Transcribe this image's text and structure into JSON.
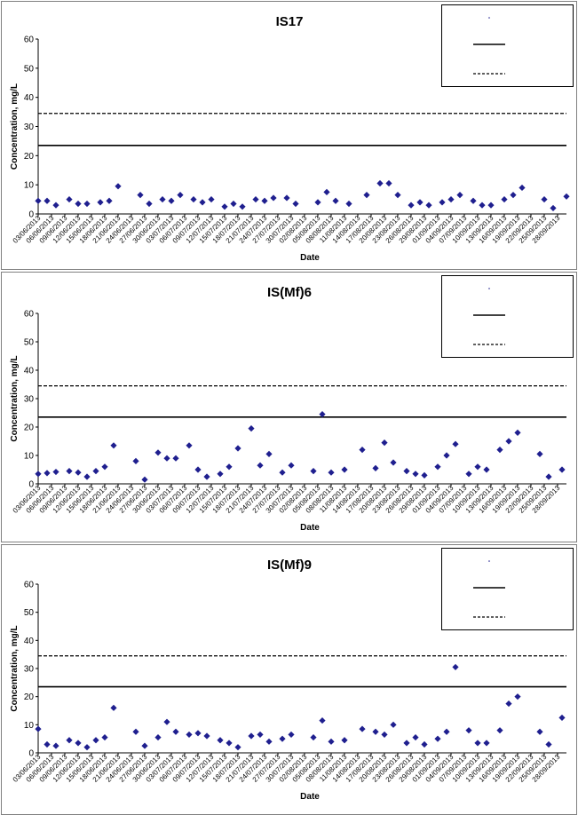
{
  "chart_data": [
    {
      "type": "scatter",
      "title": "IS17",
      "xlabel": "Date",
      "ylabel": "Concentration, mg/L",
      "ylim": [
        0,
        60
      ],
      "yticks": [
        "0",
        "10",
        "20",
        "30",
        "40",
        "50",
        "60"
      ],
      "xlim": [
        "03/06/2013",
        "30/09/2013"
      ],
      "xticks": [
        "03/06/2013",
        "06/06/2013",
        "09/06/2013",
        "12/06/2013",
        "15/06/2013",
        "18/06/2013",
        "21/06/2013",
        "24/06/2013",
        "27/06/2013",
        "30/06/2013",
        "03/07/2013",
        "06/07/2013",
        "09/07/2013",
        "12/07/2013",
        "15/07/2013",
        "18/07/2013",
        "21/07/2013",
        "24/07/2013",
        "27/07/2013",
        "30/07/2013",
        "02/08/2013",
        "05/08/2013",
        "08/08/2013",
        "11/08/2013",
        "14/08/2013",
        "17/08/2013",
        "20/08/2013",
        "23/08/2013",
        "26/08/2013",
        "29/08/2013",
        "01/09/2013",
        "04/09/2013",
        "07/09/2013",
        "10/09/2013",
        "13/09/2013",
        "16/09/2013",
        "19/09/2013",
        "22/09/2013",
        "25/09/2013",
        "28/09/2013"
      ],
      "grid": false,
      "legend": "top-right",
      "series": [
        {
          "marker": "diamond",
          "color": "#1f1f8f",
          "points": [
            [
              "03/06/2013",
              4.5
            ],
            [
              "05/06/2013",
              4.5
            ],
            [
              "07/06/2013",
              3
            ],
            [
              "10/06/2013",
              5
            ],
            [
              "12/06/2013",
              3.5
            ],
            [
              "14/06/2013",
              3.5
            ],
            [
              "17/06/2013",
              4
            ],
            [
              "19/06/2013",
              4.5
            ],
            [
              "21/06/2013",
              9.5
            ],
            [
              "26/06/2013",
              6.5
            ],
            [
              "28/06/2013",
              3.5
            ],
            [
              "01/07/2013",
              5
            ],
            [
              "03/07/2013",
              4.5
            ],
            [
              "05/07/2013",
              6.5
            ],
            [
              "08/07/2013",
              5
            ],
            [
              "10/07/2013",
              4
            ],
            [
              "12/07/2013",
              5
            ],
            [
              "15/07/2013",
              2.5
            ],
            [
              "17/07/2013",
              3.5
            ],
            [
              "19/07/2013",
              2.5
            ],
            [
              "22/07/2013",
              5
            ],
            [
              "24/07/2013",
              4.5
            ],
            [
              "26/07/2013",
              5.5
            ],
            [
              "29/07/2013",
              5.5
            ],
            [
              "31/07/2013",
              3.5
            ],
            [
              "05/08/2013",
              4
            ],
            [
              "07/08/2013",
              7.5
            ],
            [
              "09/08/2013",
              4.5
            ],
            [
              "12/08/2013",
              3.5
            ],
            [
              "16/08/2013",
              6.5
            ],
            [
              "19/08/2013",
              10.5
            ],
            [
              "21/08/2013",
              10.5
            ],
            [
              "23/08/2013",
              6.5
            ],
            [
              "26/08/2013",
              3
            ],
            [
              "28/08/2013",
              4
            ],
            [
              "30/08/2013",
              3
            ],
            [
              "02/09/2013",
              4
            ],
            [
              "04/09/2013",
              5
            ],
            [
              "06/09/2013",
              6.5
            ],
            [
              "09/09/2013",
              4.5
            ],
            [
              "11/09/2013",
              3
            ],
            [
              "13/09/2013",
              3
            ],
            [
              "16/09/2013",
              5
            ],
            [
              "18/09/2013",
              6.5
            ],
            [
              "20/09/2013",
              9
            ],
            [
              "25/09/2013",
              5
            ],
            [
              "27/09/2013",
              2
            ],
            [
              "30/09/2013",
              6
            ]
          ]
        }
      ],
      "reference_lines": [
        {
          "style": "solid",
          "value": 23.5
        },
        {
          "style": "dashed",
          "value": 34.5
        }
      ]
    },
    {
      "type": "scatter",
      "title": "IS(Mf)6",
      "xlabel": "Date",
      "ylabel": "Concentration, mg/L",
      "ylim": [
        0,
        60
      ],
      "yticks": [
        "0",
        "10",
        "20",
        "30",
        "40",
        "50",
        "60"
      ],
      "xlim": [
        "03/06/2013",
        "30/09/2013"
      ],
      "xticks": [
        "03/06/2013",
        "06/06/2013",
        "09/06/2013",
        "12/06/2013",
        "15/06/2013",
        "18/06/2013",
        "21/06/2013",
        "24/06/2013",
        "27/06/2013",
        "30/06/2013",
        "03/07/2013",
        "06/07/2013",
        "09/07/2013",
        "12/07/2013",
        "15/07/2013",
        "18/07/2013",
        "21/07/2013",
        "24/07/2013",
        "27/07/2013",
        "30/07/2013",
        "02/08/2013",
        "05/08/2013",
        "08/08/2013",
        "11/08/2013",
        "14/08/2013",
        "17/08/2013",
        "20/08/2013",
        "23/08/2013",
        "26/08/2013",
        "29/08/2013",
        "01/09/2013",
        "04/09/2013",
        "07/09/2013",
        "10/09/2013",
        "13/09/2013",
        "16/09/2013",
        "19/09/2013",
        "22/09/2013",
        "25/09/2013",
        "28/09/2013"
      ],
      "grid": false,
      "legend": "top-right",
      "series": [
        {
          "marker": "diamond",
          "color": "#1f1f8f",
          "points": [
            [
              "03/06/2013",
              3.5
            ],
            [
              "05/06/2013",
              3.8
            ],
            [
              "07/06/2013",
              4.2
            ],
            [
              "10/06/2013",
              4.5
            ],
            [
              "12/06/2013",
              4
            ],
            [
              "14/06/2013",
              2.5
            ],
            [
              "16/06/2013",
              4.5
            ],
            [
              "18/06/2013",
              6
            ],
            [
              "20/06/2013",
              13.5
            ],
            [
              "25/06/2013",
              8
            ],
            [
              "27/06/2013",
              1.5
            ],
            [
              "30/06/2013",
              11
            ],
            [
              "02/07/2013",
              9
            ],
            [
              "04/07/2013",
              9
            ],
            [
              "07/07/2013",
              13.5
            ],
            [
              "09/07/2013",
              5
            ],
            [
              "11/07/2013",
              2.5
            ],
            [
              "14/07/2013",
              3.5
            ],
            [
              "16/07/2013",
              6
            ],
            [
              "18/07/2013",
              12.5
            ],
            [
              "21/07/2013",
              19.5
            ],
            [
              "23/07/2013",
              6.5
            ],
            [
              "25/07/2013",
              10.5
            ],
            [
              "28/07/2013",
              4
            ],
            [
              "30/07/2013",
              6.5
            ],
            [
              "04/08/2013",
              4.5
            ],
            [
              "06/08/2013",
              24.5
            ],
            [
              "08/08/2013",
              4
            ],
            [
              "11/08/2013",
              5
            ],
            [
              "15/08/2013",
              12
            ],
            [
              "18/08/2013",
              5.5
            ],
            [
              "20/08/2013",
              14.5
            ],
            [
              "22/08/2013",
              7.5
            ],
            [
              "25/08/2013",
              4.5
            ],
            [
              "27/08/2013",
              3.5
            ],
            [
              "29/08/2013",
              3
            ],
            [
              "01/09/2013",
              6
            ],
            [
              "03/09/2013",
              10
            ],
            [
              "05/09/2013",
              14
            ],
            [
              "08/09/2013",
              3.5
            ],
            [
              "10/09/2013",
              6
            ],
            [
              "12/09/2013",
              5
            ],
            [
              "15/09/2013",
              12
            ],
            [
              "17/09/2013",
              15
            ],
            [
              "19/09/2013",
              18
            ],
            [
              "24/09/2013",
              10.5
            ],
            [
              "26/09/2013",
              2.5
            ],
            [
              "29/09/2013",
              5
            ]
          ]
        }
      ],
      "reference_lines": [
        {
          "style": "solid",
          "value": 23.5
        },
        {
          "style": "dashed",
          "value": 34.5
        }
      ]
    },
    {
      "type": "scatter",
      "title": "IS(Mf)9",
      "xlabel": "Date",
      "ylabel": "Concentration, mg/L",
      "ylim": [
        0,
        60
      ],
      "yticks": [
        "0",
        "10",
        "20",
        "30",
        "40",
        "50",
        "60"
      ],
      "xlim": [
        "03/06/2013",
        "30/09/2013"
      ],
      "xticks": [
        "03/06/2013",
        "06/06/2013",
        "09/06/2013",
        "12/06/2013",
        "15/06/2013",
        "18/06/2013",
        "21/06/2013",
        "24/06/2013",
        "27/06/2013",
        "30/06/2013",
        "03/07/2013",
        "06/07/2013",
        "09/07/2013",
        "12/07/2013",
        "15/07/2013",
        "18/07/2013",
        "21/07/2013",
        "24/07/2013",
        "27/07/2013",
        "30/07/2013",
        "02/08/2013",
        "05/08/2013",
        "08/08/2013",
        "11/08/2013",
        "14/08/2013",
        "17/08/2013",
        "20/08/2013",
        "23/08/2013",
        "26/08/2013",
        "29/08/2013",
        "01/09/2013",
        "04/09/2013",
        "07/09/2013",
        "10/09/2013",
        "13/09/2013",
        "16/09/2013",
        "19/09/2013",
        "22/09/2013",
        "25/09/2013",
        "28/09/2013"
      ],
      "grid": false,
      "legend": "top-right",
      "series": [
        {
          "marker": "diamond",
          "color": "#1f1f8f",
          "points": [
            [
              "03/06/2013",
              8.5
            ],
            [
              "05/06/2013",
              3
            ],
            [
              "07/06/2013",
              2.5
            ],
            [
              "10/06/2013",
              4.5
            ],
            [
              "12/06/2013",
              3.5
            ],
            [
              "14/06/2013",
              2
            ],
            [
              "16/06/2013",
              4.5
            ],
            [
              "18/06/2013",
              5.5
            ],
            [
              "20/06/2013",
              16
            ],
            [
              "25/06/2013",
              7.5
            ],
            [
              "27/06/2013",
              2.5
            ],
            [
              "30/06/2013",
              5.5
            ],
            [
              "02/07/2013",
              11
            ],
            [
              "04/07/2013",
              7.5
            ],
            [
              "07/07/2013",
              6.5
            ],
            [
              "09/07/2013",
              7
            ],
            [
              "11/07/2013",
              6
            ],
            [
              "14/07/2013",
              4.5
            ],
            [
              "16/07/2013",
              3.5
            ],
            [
              "18/07/2013",
              2
            ],
            [
              "21/07/2013",
              6
            ],
            [
              "23/07/2013",
              6.5
            ],
            [
              "25/07/2013",
              4
            ],
            [
              "28/07/2013",
              5
            ],
            [
              "30/07/2013",
              6.5
            ],
            [
              "04/08/2013",
              5.5
            ],
            [
              "06/08/2013",
              11.5
            ],
            [
              "08/08/2013",
              4
            ],
            [
              "11/08/2013",
              4.5
            ],
            [
              "15/08/2013",
              8.5
            ],
            [
              "18/08/2013",
              7.5
            ],
            [
              "20/08/2013",
              6.5
            ],
            [
              "22/08/2013",
              10
            ],
            [
              "25/08/2013",
              3.5
            ],
            [
              "27/08/2013",
              5.5
            ],
            [
              "29/08/2013",
              3
            ],
            [
              "01/09/2013",
              5
            ],
            [
              "03/09/2013",
              7.5
            ],
            [
              "05/09/2013",
              30.5
            ],
            [
              "08/09/2013",
              8
            ],
            [
              "10/09/2013",
              3.5
            ],
            [
              "12/09/2013",
              3.5
            ],
            [
              "15/09/2013",
              8
            ],
            [
              "17/09/2013",
              17.5
            ],
            [
              "19/09/2013",
              20
            ],
            [
              "24/09/2013",
              7.5
            ],
            [
              "26/09/2013",
              3
            ],
            [
              "29/09/2013",
              12.5
            ]
          ]
        }
      ],
      "reference_lines": [
        {
          "style": "solid",
          "value": 23.5
        },
        {
          "style": "dashed",
          "value": 34.5
        }
      ]
    }
  ]
}
